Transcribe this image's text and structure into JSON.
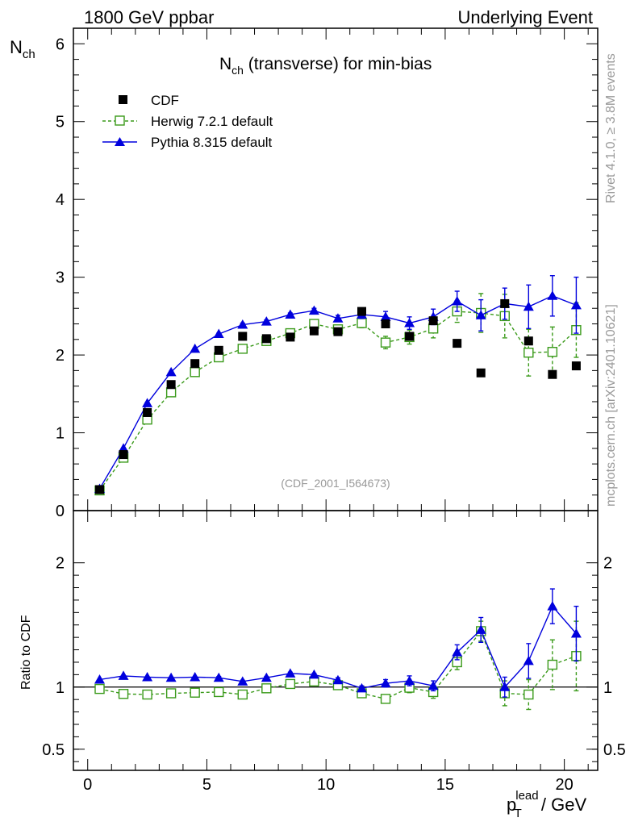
{
  "header": {
    "left": "1800 GeV ppbar",
    "right": "Underlying Event"
  },
  "side_labels": {
    "rivet": "Rivet 4.1.0, ≥ 3.8M events",
    "mcplots": "mcplots.cern.ch [arXiv:2401.10621]"
  },
  "colors": {
    "cdf": "#000000",
    "herwig": "#3a9a1a",
    "pythia": "#0000dd",
    "watermark": "#999999"
  },
  "chart_data": [
    {
      "type": "scatter",
      "panel": "main",
      "title": "N_ch (transverse) for min-bias",
      "title_main": "N",
      "title_sub": "ch",
      "title_rest": " (transverse) for min-bias",
      "ylabel_main": "N",
      "ylabel_sub": "ch",
      "xlim": [
        -0.6,
        21.4
      ],
      "ylim": [
        0,
        6.2
      ],
      "yticks": [
        1,
        2,
        3,
        4,
        5,
        6
      ],
      "ytick_labels": [
        "1",
        "2",
        "3",
        "4",
        "5",
        "6"
      ],
      "ytick_bottom_label": "0",
      "watermark": "(CDF_2001_I564673)",
      "legend_position": "top-left",
      "x": [
        0.5,
        1.5,
        2.5,
        3.5,
        4.5,
        5.5,
        6.5,
        7.5,
        8.5,
        9.5,
        10.5,
        11.5,
        12.5,
        13.5,
        14.5,
        15.5,
        16.5,
        17.5,
        18.5,
        19.5,
        20.5
      ],
      "series": [
        {
          "name": "CDF",
          "style": "marker",
          "values": [
            0.27,
            0.72,
            1.26,
            1.62,
            1.89,
            2.06,
            2.24,
            2.21,
            2.23,
            2.31,
            2.3,
            2.56,
            2.4,
            2.24,
            2.44,
            2.15,
            1.77,
            2.66,
            2.18,
            1.75,
            1.86
          ]
        },
        {
          "name": "Herwig 7.2.1 default",
          "style": "dashed-open-square",
          "values": [
            0.26,
            0.68,
            1.17,
            1.52,
            1.78,
            1.97,
            2.08,
            2.18,
            2.28,
            2.4,
            2.33,
            2.41,
            2.16,
            2.23,
            2.34,
            2.56,
            2.54,
            2.5,
            2.03,
            2.04,
            2.32
          ],
          "errors": [
            0.01,
            0.01,
            0.01,
            0.02,
            0.02,
            0.02,
            0.03,
            0.03,
            0.04,
            0.04,
            0.05,
            0.06,
            0.08,
            0.09,
            0.12,
            0.14,
            0.25,
            0.28,
            0.3,
            0.32,
            0.35
          ]
        },
        {
          "name": "Pythia 8.315 default",
          "style": "solid-triangle",
          "values": [
            0.28,
            0.8,
            1.38,
            1.78,
            2.08,
            2.27,
            2.39,
            2.43,
            2.52,
            2.57,
            2.47,
            2.52,
            2.49,
            2.41,
            2.49,
            2.69,
            2.51,
            2.66,
            2.62,
            2.76,
            2.64
          ],
          "errors": [
            0.0,
            0.0,
            0.01,
            0.01,
            0.01,
            0.01,
            0.02,
            0.02,
            0.02,
            0.03,
            0.04,
            0.05,
            0.07,
            0.08,
            0.1,
            0.13,
            0.2,
            0.2,
            0.28,
            0.26,
            0.36
          ]
        }
      ]
    },
    {
      "type": "line",
      "panel": "ratio",
      "ylabel": "Ratio to CDF",
      "xlabel_main": "p",
      "xlabel_sub": "T",
      "xlabel_sup": "lead",
      "xlabel_rest": " / GeV",
      "xlim": [
        -0.6,
        21.4
      ],
      "ylim": [
        0.33,
        2.42
      ],
      "yticks": [
        0.5,
        1,
        2
      ],
      "ytick_labels": [
        "0.5",
        "1",
        "2"
      ],
      "xticks": [
        0,
        5,
        10,
        15,
        20
      ],
      "xtick_labels": [
        "0",
        "5",
        "10",
        "15",
        "20"
      ],
      "reference_line": 1,
      "x": [
        0.5,
        1.5,
        2.5,
        3.5,
        4.5,
        5.5,
        6.5,
        7.5,
        8.5,
        9.5,
        10.5,
        11.5,
        12.5,
        13.5,
        14.5,
        15.5,
        16.5,
        17.5,
        18.5,
        19.5,
        20.5
      ],
      "series": [
        {
          "name": "Herwig 7.2.1 default",
          "style": "dashed-open-square",
          "values": [
            0.985,
            0.945,
            0.94,
            0.95,
            0.955,
            0.96,
            0.94,
            0.99,
            1.025,
            1.045,
            1.015,
            0.95,
            0.905,
            0.995,
            0.96,
            1.2,
            1.45,
            0.95,
            0.94,
            1.18,
            1.25
          ],
          "errors": [
            0.01,
            0.01,
            0.01,
            0.01,
            0.01,
            0.01,
            0.01,
            0.01,
            0.01,
            0.02,
            0.02,
            0.02,
            0.03,
            0.04,
            0.05,
            0.06,
            0.08,
            0.1,
            0.12,
            0.2,
            0.28
          ]
        },
        {
          "name": "Pythia 8.315 default",
          "style": "solid-triangle",
          "values": [
            1.06,
            1.09,
            1.08,
            1.075,
            1.08,
            1.075,
            1.045,
            1.075,
            1.11,
            1.1,
            1.055,
            0.99,
            1.03,
            1.05,
            1.01,
            1.28,
            1.46,
            1.0,
            1.21,
            1.65,
            1.43
          ],
          "errors": [
            0.0,
            0.0,
            0.0,
            0.0,
            0.0,
            0.01,
            0.01,
            0.01,
            0.01,
            0.01,
            0.02,
            0.02,
            0.03,
            0.04,
            0.04,
            0.06,
            0.1,
            0.08,
            0.14,
            0.14,
            0.22
          ]
        }
      ]
    }
  ]
}
